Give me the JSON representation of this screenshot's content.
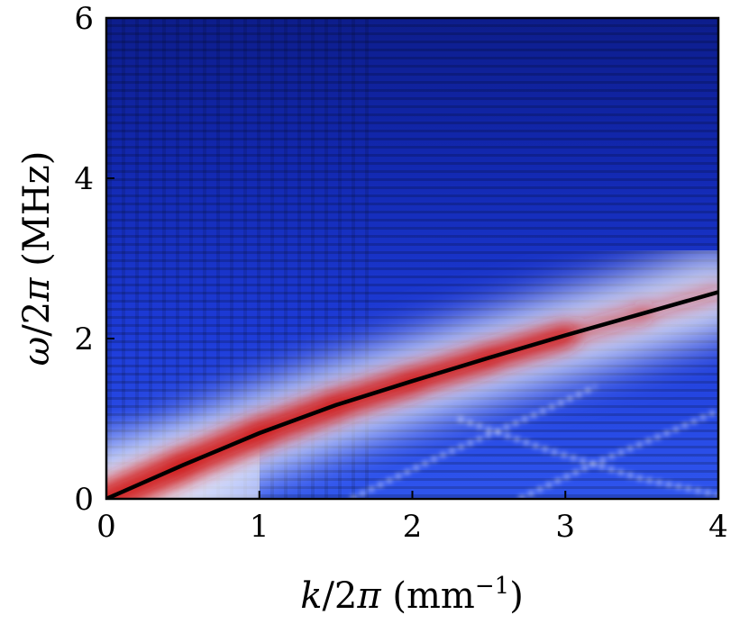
{
  "chart_data": {
    "type": "heatmap",
    "xlabel_parts": [
      "k",
      "/2",
      "π",
      " (mm",
      "−1",
      ")"
    ],
    "ylabel_parts": [
      "ω",
      "/2",
      "π",
      " (MHz)"
    ],
    "xlim": [
      0,
      4
    ],
    "ylim": [
      0,
      6
    ],
    "xticks": [
      0,
      1,
      2,
      3,
      4
    ],
    "yticks": [
      0,
      2,
      4,
      6
    ],
    "xtick_labels": [
      "0",
      "1",
      "2",
      "3",
      "4"
    ],
    "ytick_labels": [
      "0",
      "2",
      "4",
      "6"
    ],
    "colormap": {
      "low": "#0a0a6e",
      "mid_low": "#1e3ef0",
      "mid": "#ffffff",
      "high": "#d11a1a"
    },
    "dispersion_curve": {
      "color": "#000000",
      "x": [
        0,
        0.5,
        1.0,
        1.5,
        2.0,
        2.5,
        3.0,
        3.5,
        4.0
      ],
      "y": [
        0,
        0.42,
        0.82,
        1.17,
        1.47,
        1.76,
        2.04,
        2.31,
        2.58
      ]
    },
    "secondary_branches": [
      {
        "x": [
          1.6,
          2.2,
          2.8,
          3.2
        ],
        "y": [
          0.0,
          0.55,
          1.05,
          1.4
        ]
      },
      {
        "x": [
          2.7,
          3.2,
          3.7,
          4.0
        ],
        "y": [
          0.0,
          0.45,
          0.85,
          1.1
        ]
      },
      {
        "x": [
          2.3,
          2.9,
          3.5,
          4.0
        ],
        "y": [
          1.0,
          0.6,
          0.25,
          0.05
        ]
      }
    ]
  }
}
